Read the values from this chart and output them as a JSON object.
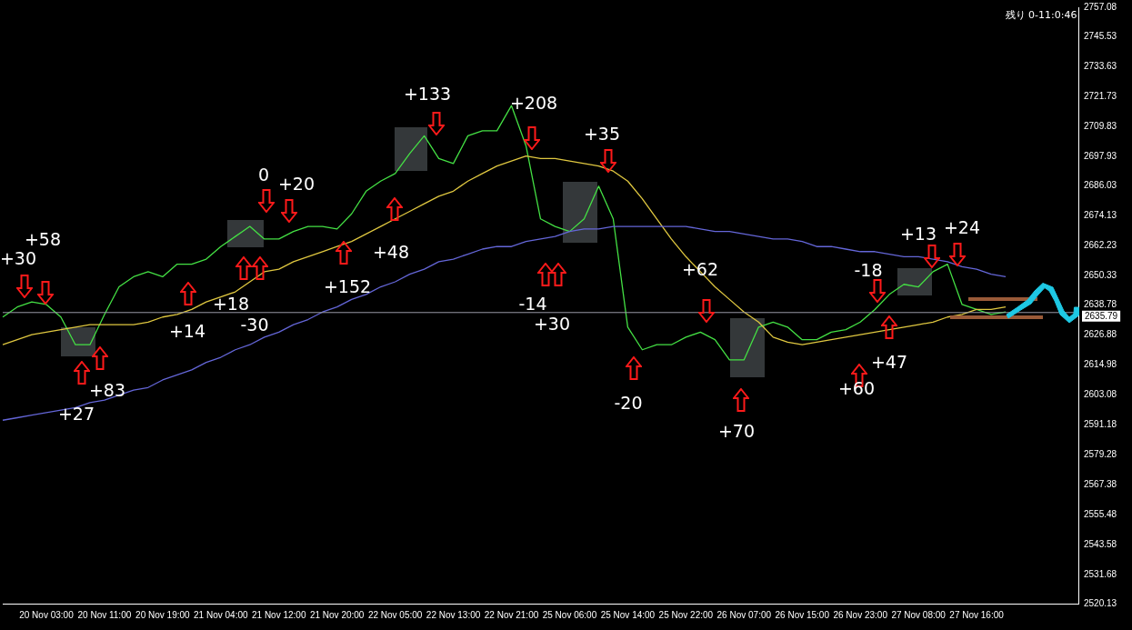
{
  "chart_data": {
    "type": "line",
    "categories": [
      null,
      null,
      null,
      "20 Nov 03:00",
      null,
      null,
      null,
      "20 Nov 11:00",
      null,
      null,
      null,
      "20 Nov 19:00",
      null,
      null,
      null,
      "21 Nov 04:00",
      null,
      null,
      null,
      "21 Nov 12:00",
      null,
      null,
      null,
      "21 Nov 20:00",
      null,
      null,
      null,
      "22 Nov 05:00",
      null,
      null,
      null,
      "22 Nov 13:00",
      null,
      null,
      null,
      "22 Nov 21:00",
      null,
      null,
      null,
      "25 Nov 06:00",
      null,
      null,
      null,
      "25 Nov 14:00",
      null,
      null,
      null,
      "25 Nov 22:00",
      null,
      null,
      null,
      "26 Nov 07:00",
      null,
      null,
      null,
      "26 Nov 15:00",
      null,
      null,
      null,
      "26 Nov 23:00",
      null,
      null,
      null,
      "27 Nov 08:00",
      null,
      null,
      null,
      "27 Nov 16:00",
      null,
      null,
      null,
      null,
      null,
      null,
      null
    ],
    "series": [
      {
        "color": "#6466d8",
        "values": [
          2593,
          2594,
          2595,
          2596,
          2597,
          2598,
          2600,
          2601,
          2603,
          2605,
          2606,
          2609,
          2611,
          2613,
          2616,
          2618,
          2621,
          2623,
          2626,
          2628,
          2631,
          2633,
          2636,
          2638,
          2641,
          2643,
          2646,
          2648,
          2651,
          2653,
          2656,
          2657,
          2659,
          2661,
          2662,
          2662,
          2664,
          2665,
          2666,
          2668,
          2669,
          2669,
          2670,
          2670,
          2670,
          2670,
          2670,
          2670,
          2669,
          2668,
          2668,
          2667,
          2666,
          2665,
          2665,
          2664,
          2662,
          2662,
          2661,
          2660,
          2660,
          2659,
          2658,
          2658,
          2657,
          2656,
          2654,
          2653,
          2651,
          2650,
          null,
          null,
          null,
          null,
          null
        ]
      },
      {
        "color": "#e0c840",
        "values": [
          2623,
          2625,
          2627,
          2628,
          2629,
          2630,
          2631,
          2631,
          2631,
          2631,
          2632,
          2634,
          2635,
          2637,
          2640,
          2642,
          2644,
          2648,
          2652,
          2653,
          2656,
          2658,
          2660,
          2662,
          2664,
          2667,
          2670,
          2673,
          2676,
          2679,
          2682,
          2684,
          2688,
          2691,
          2694,
          2696,
          2698,
          2697,
          2697,
          2696,
          2695,
          2694,
          2692,
          2688,
          2681,
          2673,
          2665,
          2658,
          2652,
          2646,
          2641,
          2636,
          2632,
          2626,
          2624,
          2623,
          2624,
          2625,
          2626,
          2627,
          2628,
          2629,
          2630,
          2631,
          2632,
          2634,
          2635,
          2637,
          2637,
          2638,
          null,
          null,
          null,
          null,
          null
        ]
      },
      {
        "color": "#44e044",
        "values": [
          2634,
          2638,
          2640,
          2639,
          2634,
          2623,
          2623,
          2635,
          2646,
          2650,
          2652,
          2650,
          2655,
          2655,
          2657,
          2662,
          2666,
          2670,
          2665,
          2665,
          2668,
          2670,
          2670,
          2669,
          2675,
          2684,
          2688,
          2691,
          2699,
          2706,
          2697,
          2695,
          2706,
          2708,
          2708,
          2718,
          2702,
          2673,
          2670,
          2668,
          2673,
          2686,
          2673,
          2630,
          2621,
          2623,
          2623,
          2626,
          2628,
          2625,
          2617,
          2617,
          2630,
          2632,
          2630,
          2625,
          2625,
          2628,
          2629,
          2632,
          2637,
          2643,
          2647,
          2646,
          2652,
          2655,
          2639,
          2637,
          2635,
          2636,
          null,
          null,
          null,
          null,
          null
        ]
      }
    ],
    "ylim": [
      2520.13,
      2757.08
    ],
    "yticks": [
      2520.13,
      2531.68,
      2543.58,
      2555.48,
      2567.38,
      2579.28,
      2591.18,
      2603.08,
      2614.98,
      2626.88,
      2638.78,
      2650.33,
      2662.23,
      2674.13,
      2686.03,
      2697.93,
      2709.83,
      2721.73,
      2733.63,
      2745.53,
      2757.08
    ],
    "ref_lines": [
      {
        "axis": "y",
        "value": 2635.79,
        "label": "2635.79",
        "color": "#9a9aa8"
      }
    ],
    "annotations": [
      "+30",
      "+58",
      "+27",
      "+83",
      "+14",
      "+18",
      "-30",
      "0",
      "+20",
      "+152",
      "+48",
      "+133",
      "+208",
      "-14",
      "+30",
      "+35",
      "-20",
      "+62",
      "+70",
      "-18",
      "+60",
      "+47",
      "+13",
      "+24",
      "残り 0-11:0:46"
    ]
  }
}
